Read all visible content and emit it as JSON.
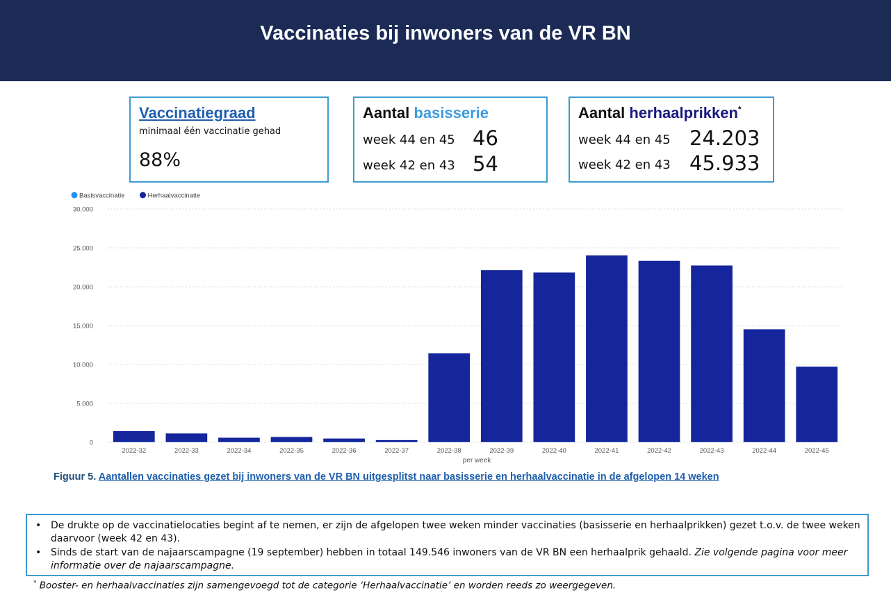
{
  "header": {
    "title": "Vaccinaties bij inwoners van de VR BN"
  },
  "kpis": {
    "graad": {
      "title": "Vaccinatiegraad",
      "subtitle": "minimaal één vaccinatie gehad",
      "value": "88%"
    },
    "basis": {
      "title_prefix": "Aantal",
      "title_accent": "basisserie",
      "rows": [
        {
          "label": "week 44 en 45",
          "value": "46"
        },
        {
          "label": "week 42 en 43",
          "value": "54"
        }
      ]
    },
    "herhaal": {
      "title_prefix": "Aantal",
      "title_accent": "herhaalprikken",
      "title_mark": "*",
      "rows": [
        {
          "label": "week 44 en 45",
          "value": "24.203"
        },
        {
          "label": "week 42 en 43",
          "value": "45.933"
        }
      ]
    }
  },
  "colors": {
    "header_bg": "#1b2b55",
    "basis": "#1e90ff",
    "herhaal": "#15259b",
    "border": "#3d9bd0"
  },
  "chart_data": {
    "type": "bar",
    "stacked": true,
    "xlabel": "per week",
    "ylabel": "",
    "ylim": [
      0,
      30000
    ],
    "yticks": [
      0,
      5000,
      10000,
      15000,
      20000,
      25000,
      30000
    ],
    "ytick_labels": [
      "0",
      "5.000",
      "10.000",
      "15.000",
      "20.000",
      "25.000",
      "30.000"
    ],
    "grid": true,
    "legend_position": "top-left",
    "categories": [
      "2022-32",
      "2022-33",
      "2022-34",
      "2022-35",
      "2022-36",
      "2022-37",
      "2022-38",
      "2022-39",
      "2022-40",
      "2022-41",
      "2022-42",
      "2022-43",
      "2022-44",
      "2022-45"
    ],
    "series": [
      {
        "name": "Basisvaccinatie",
        "color": "#1e90ff",
        "values": [
          30,
          30,
          30,
          30,
          30,
          30,
          30,
          30,
          30,
          30,
          27,
          27,
          23,
          23
        ]
      },
      {
        "name": "Herhaalvaccinatie",
        "color": "#15259b",
        "values": [
          1400,
          1100,
          550,
          650,
          450,
          250,
          11400,
          22100,
          21800,
          24000,
          23300,
          22700,
          14500,
          9700
        ]
      }
    ]
  },
  "caption": {
    "prefix": "Figuur 5. ",
    "text": "Aantallen vaccinaties gezet bij inwoners van de VR BN uitgesplitst naar basisserie en herhaalvaccinatie in de afgelopen 14 weken"
  },
  "notes": {
    "items": [
      {
        "text": "De drukte op de vaccinatielocaties begint af te nemen, er zijn de afgelopen twee weken minder vaccinaties (basisserie en herhaalprikken) gezet t.o.v. de twee weken daarvoor (week 42 en 43).",
        "italic": ""
      },
      {
        "text": "Sinds de start van de najaarscampagne (19 september) hebben in totaal 149.546 inwoners van de VR BN een herhaalprik gehaald. ",
        "italic": "Zie volgende pagina voor meer informatie over de najaarscampagne."
      }
    ],
    "bullet": "•"
  },
  "footnote": {
    "mark": "*",
    "text": " Booster- en herhaalvaccinaties zijn samengevoegd tot de categorie ‘Herhaalvaccinatie’ en worden reeds zo weergegeven."
  }
}
